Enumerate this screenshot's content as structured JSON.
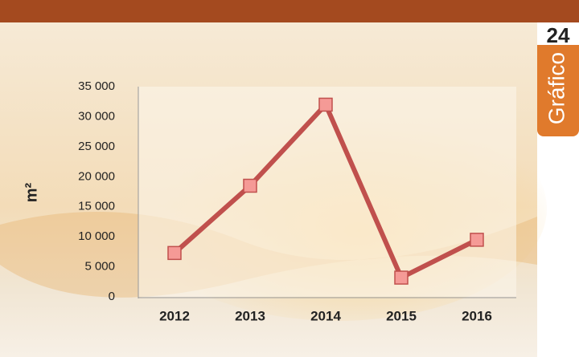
{
  "badge": {
    "number": "24",
    "label": "Gráfico"
  },
  "chart_data": {
    "type": "line",
    "y_label": "m²",
    "categories": [
      "2012",
      "2013",
      "2014",
      "2015",
      "2016"
    ],
    "series": [
      {
        "name": null,
        "color": "#c0504d",
        "values": [
          7300,
          18500,
          32000,
          3200,
          9500
        ]
      }
    ],
    "ylim": [
      0,
      35000
    ],
    "yticks": [
      0,
      {
        "value": 5000,
        "label": "5 000"
      },
      {
        "value": 10000,
        "label": "10 000"
      },
      {
        "value": 15000,
        "label": "15 000"
      },
      {
        "value": 20000,
        "label": "20 000"
      },
      {
        "value": 25000,
        "label": "25 000"
      },
      {
        "value": 30000,
        "label": "30 000"
      },
      {
        "value": 35000,
        "label": "35 000"
      }
    ]
  }
}
